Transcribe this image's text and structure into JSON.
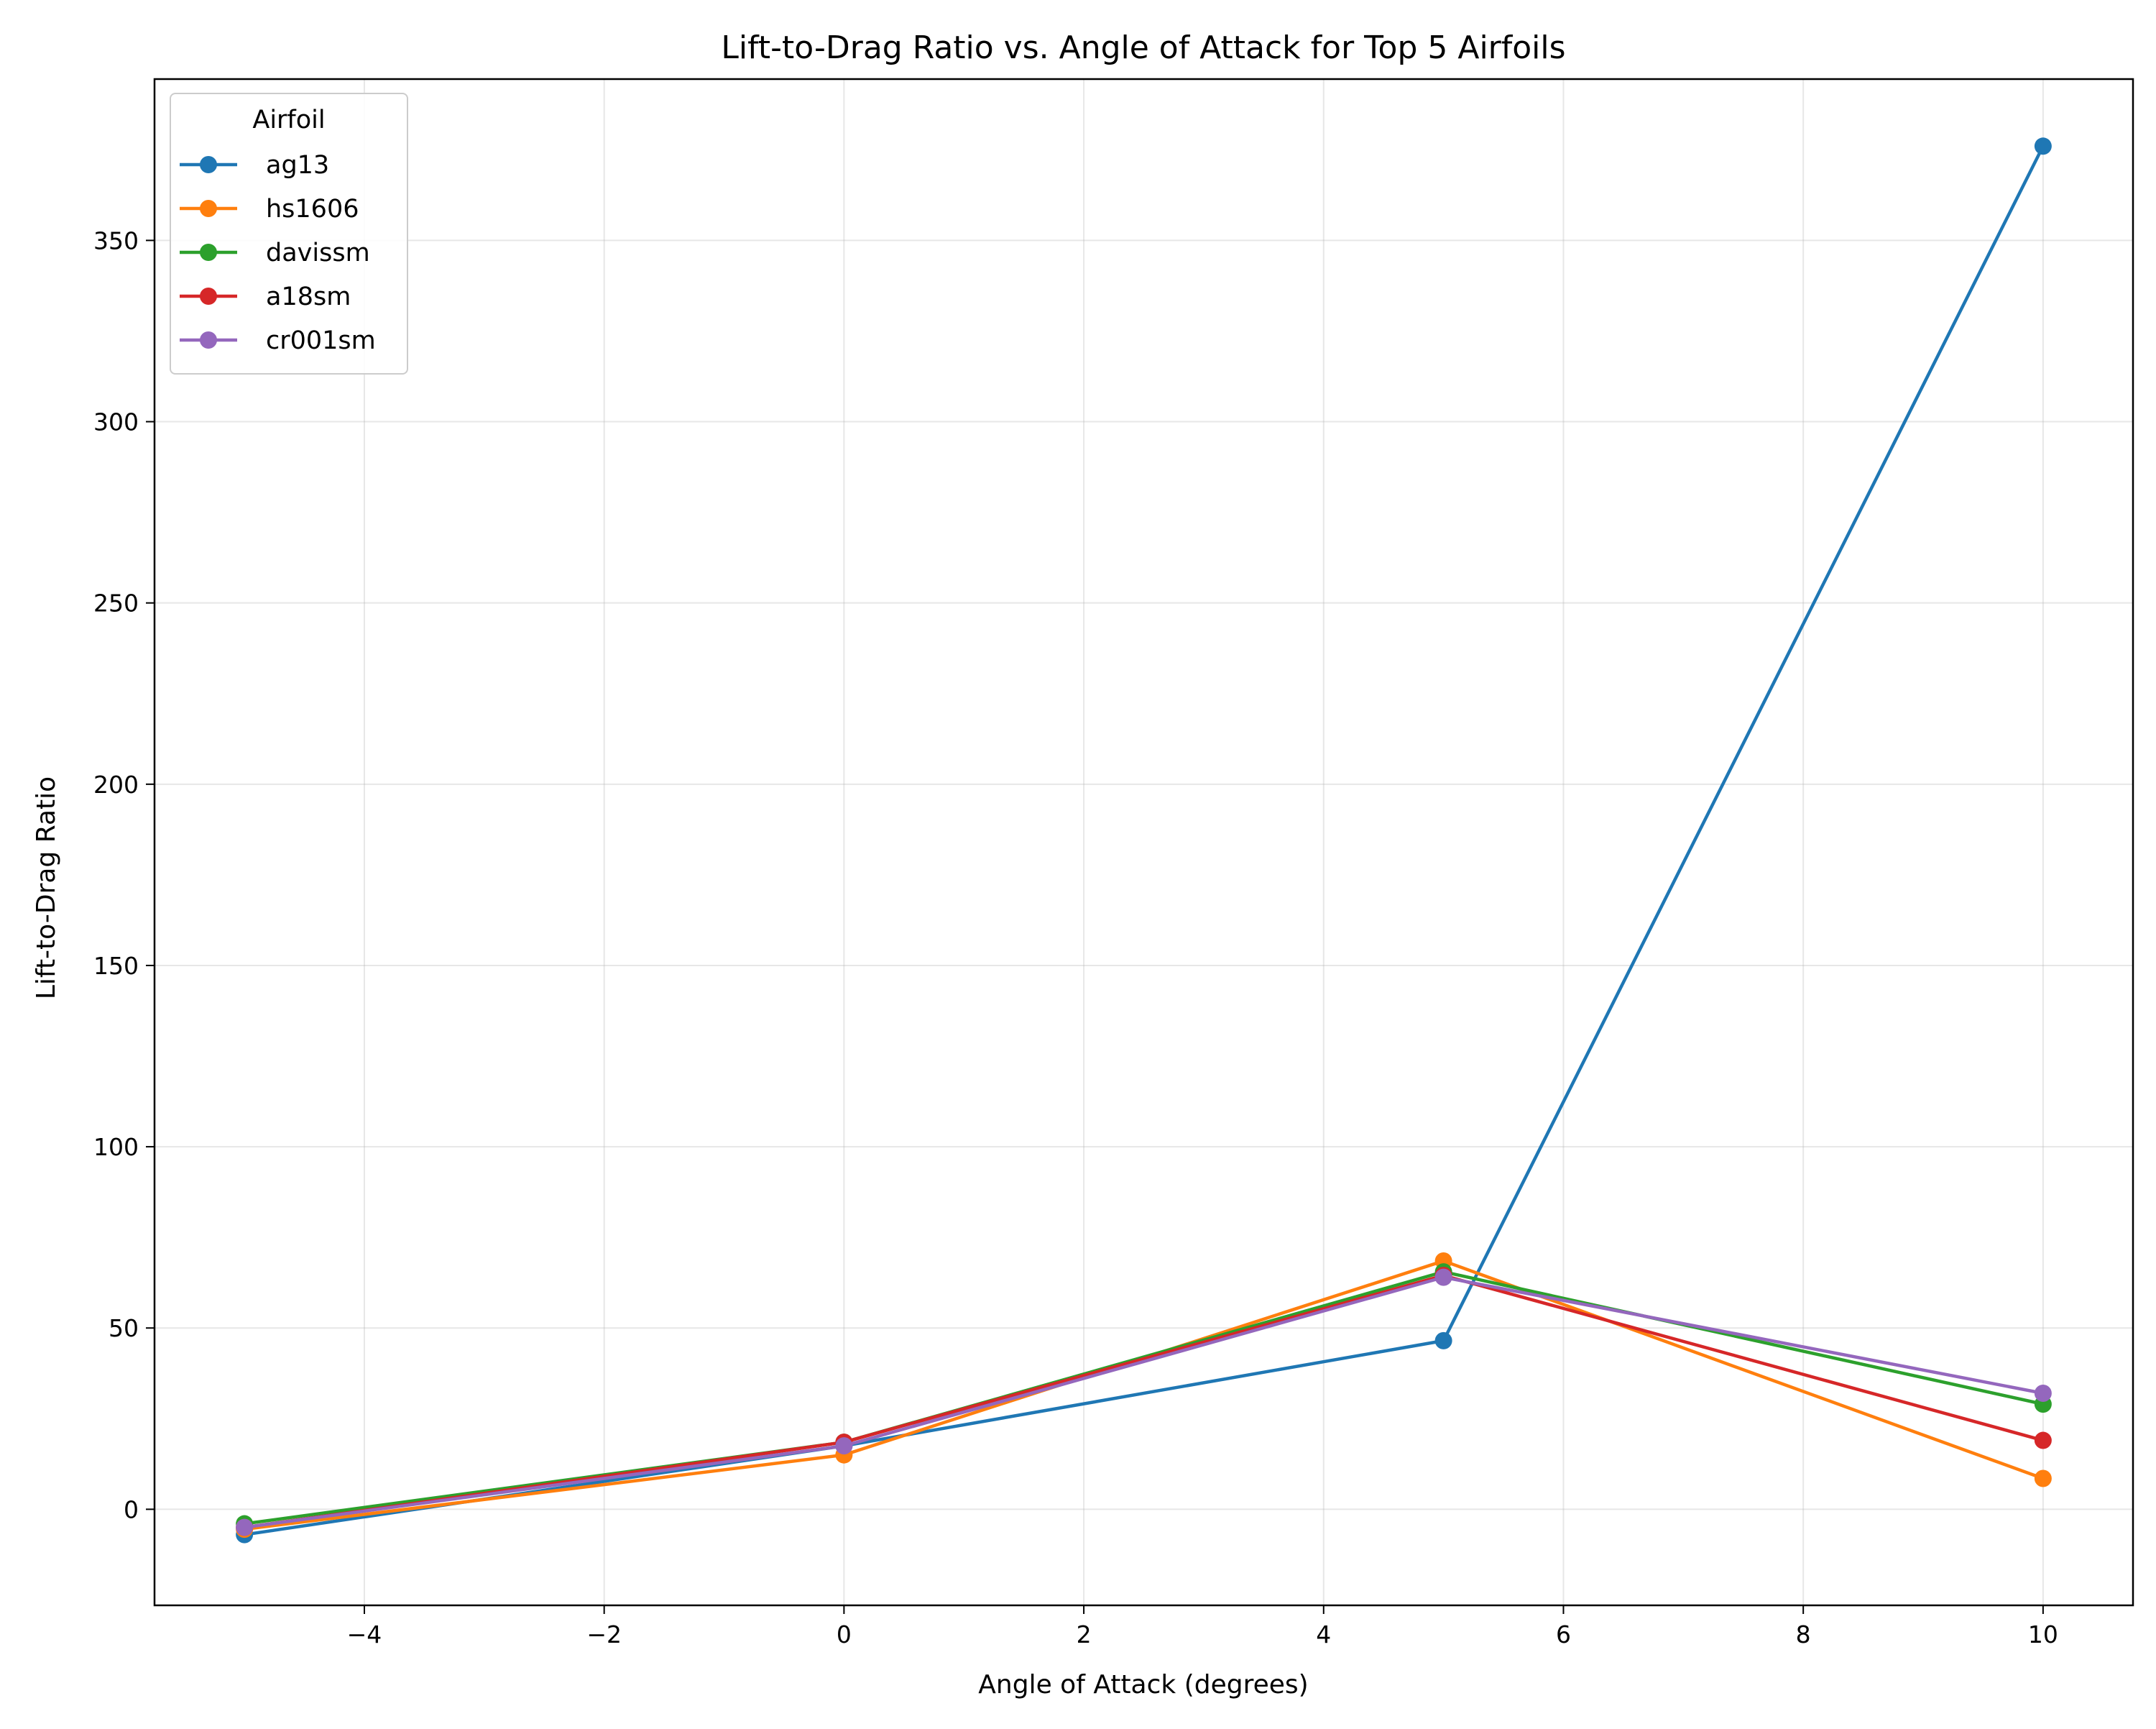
{
  "chart_data": {
    "type": "line",
    "title": "Lift-to-Drag Ratio vs. Angle of Attack for Top 5 Airfoils",
    "xlabel": "Angle of Attack (degrees)",
    "ylabel": "Lift-to-Drag Ratio",
    "x": [
      -5,
      0,
      5,
      10
    ],
    "xlim": [
      -5.75,
      10.75
    ],
    "ylim": [
      -26.5,
      394.5
    ],
    "xticks": [
      -4,
      -2,
      0,
      2,
      4,
      6,
      8,
      10
    ],
    "xtick_labels": [
      "−4",
      "−2",
      "0",
      "2",
      "4",
      "6",
      "8",
      "10"
    ],
    "yticks": [
      0,
      50,
      100,
      150,
      200,
      250,
      300,
      350
    ],
    "ytick_labels": [
      "0",
      "50",
      "100",
      "150",
      "200",
      "250",
      "300",
      "350"
    ],
    "grid": true,
    "legend": {
      "title": "Airfoil",
      "placement": "top-left"
    },
    "series": [
      {
        "name": "ag13",
        "color": "#1f77b4",
        "values": [
          -7.0,
          17.5,
          46.5,
          376.0
        ]
      },
      {
        "name": "hs1606",
        "color": "#ff7f0e",
        "values": [
          -5.5,
          15.0,
          68.5,
          8.5
        ]
      },
      {
        "name": "davissm",
        "color": "#2ca02c",
        "values": [
          -4.0,
          18.5,
          65.5,
          29.0
        ]
      },
      {
        "name": "a18sm",
        "color": "#d62728",
        "values": [
          -5.0,
          18.5,
          64.5,
          19.0
        ]
      },
      {
        "name": "cr001sm",
        "color": "#9467bd",
        "values": [
          -5.0,
          17.5,
          64.0,
          32.0
        ]
      }
    ]
  }
}
